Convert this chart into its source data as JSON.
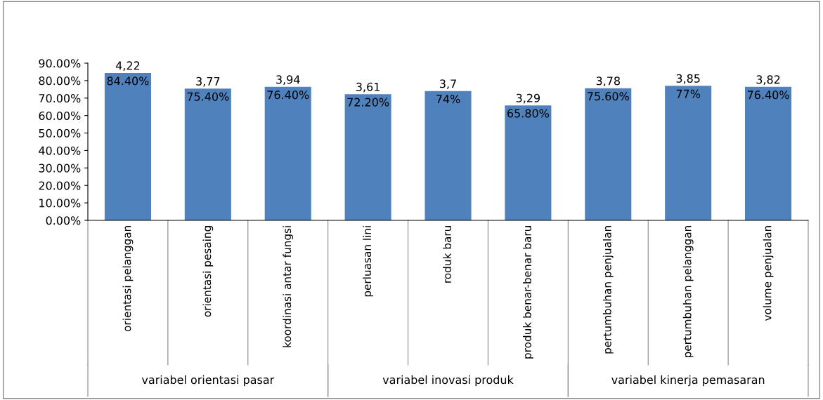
{
  "chart_data": {
    "type": "bar",
    "categories": [
      "orientasi pelanggan",
      "orientasi pesaing",
      "koordinasi antar fungsi",
      "perluasan lini",
      "roduk baru",
      "produk benar-benar baru",
      "pertumbuhan penjualan",
      "pertumbuhan pelanggan",
      "volume penjualan"
    ],
    "values": [
      84.4,
      75.4,
      76.4,
      72.2,
      74,
      65.8,
      75.6,
      77,
      76.4
    ],
    "value_labels": [
      "84.40%",
      "75.40%",
      "76.40%",
      "72.20%",
      "74%",
      "65.80%",
      "75.60%",
      "77%",
      "76.40%"
    ],
    "color": "#4f81bd",
    "ylim": [
      0,
      90
    ],
    "yticks": [
      {
        "value": 0,
        "label": "0.00%"
      },
      {
        "value": 10,
        "label": "10.00%"
      },
      {
        "value": 20,
        "label": "20.00%"
      },
      {
        "value": 30,
        "label": "30.00%"
      },
      {
        "value": 40,
        "label": "40.00%"
      },
      {
        "value": 50,
        "label": "50.00%"
      },
      {
        "value": 60,
        "label": "60.00%"
      },
      {
        "value": 70,
        "label": "70.00%"
      },
      {
        "value": 80,
        "label": "80.00%"
      },
      {
        "value": 90,
        "label": "90.00%"
      }
    ],
    "grid": false,
    "legend": false,
    "annotations": [
      {
        "text": "4,22",
        "x": "orientasi pelanggan",
        "y": 84.4
      },
      {
        "text": "3,77",
        "x": "orientasi pesaing",
        "y": 75.4
      },
      {
        "text": "3,94",
        "x": "koordinasi antar fungsi",
        "y": 76.4
      },
      {
        "text": "3,61",
        "x": "perluasan lini",
        "y": 72.2
      },
      {
        "text": "3,7",
        "x": "roduk baru",
        "y": 74
      },
      {
        "text": "3,29",
        "x": "produk benar-benar baru",
        "y": 65.8
      },
      {
        "text": "3,78",
        "x": "pertumbuhan penjualan",
        "y": 75.6
      },
      {
        "text": "3,85",
        "x": "pertumbuhan pelanggan",
        "y": 77
      },
      {
        "text": "3,82",
        "x": "volume penjualan",
        "y": 76.4
      },
      "variabel orientasi pasar",
      "variabel inovasi produk",
      "variabel kinerja pemasaran"
    ]
  }
}
